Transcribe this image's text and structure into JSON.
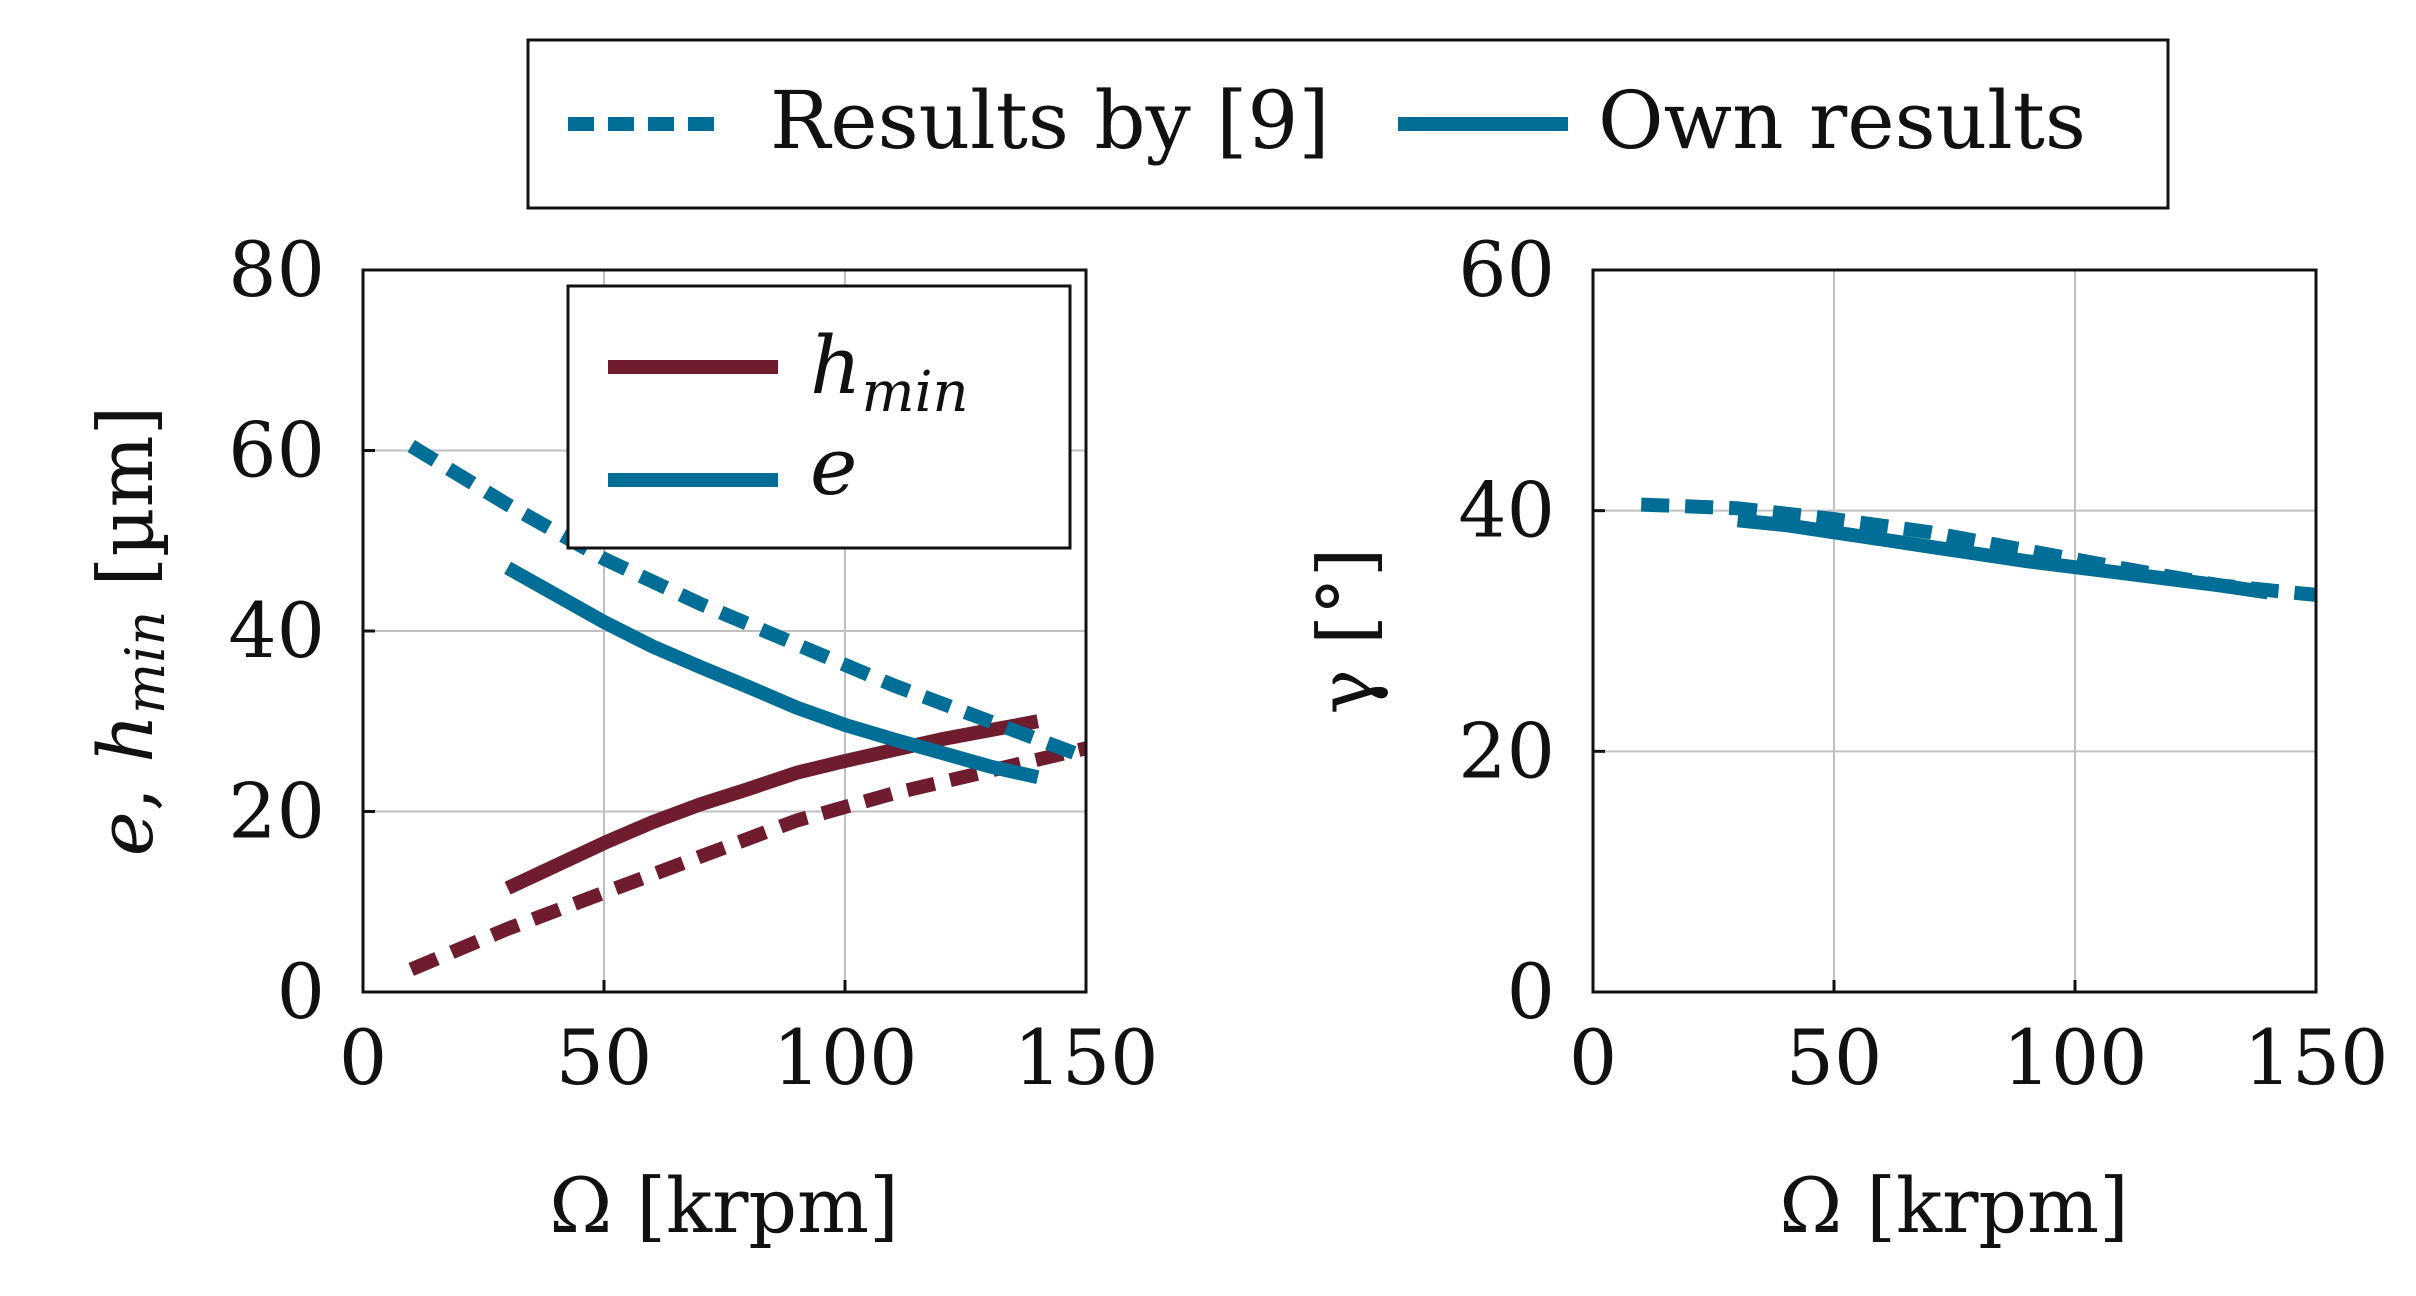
{
  "legend_top": {
    "items": [
      {
        "label": "Results by [9]",
        "style": "dashed"
      },
      {
        "label": "Own results",
        "style": "solid"
      }
    ]
  },
  "colors": {
    "hmin": "#6e1c2e",
    "e": "#006e96",
    "gamma": "#006e96"
  },
  "chart_data": [
    {
      "type": "line",
      "id": "left",
      "xlabel": "Ω [krpm]",
      "ylabel": "e, h_min [µm]",
      "ylabel_parts": {
        "e": "e",
        "sep": ", ",
        "h": "h",
        "sub": "min",
        "unit": " [µm]"
      },
      "xlim": [
        0,
        150
      ],
      "ylim": [
        0,
        80
      ],
      "xticks": [
        0,
        50,
        100,
        150
      ],
      "yticks": [
        0,
        20,
        40,
        60,
        80
      ],
      "legend": {
        "placement": "top-right",
        "entries": [
          {
            "symbol": "h",
            "sub": "min",
            "series": "hmin"
          },
          {
            "symbol": "e",
            "sub": "",
            "series": "e"
          }
        ]
      },
      "series": [
        {
          "name": "h_min (Own results)",
          "quantity": "hmin",
          "style": "solid",
          "x": [
            30,
            40,
            50,
            60,
            70,
            80,
            90,
            100,
            110,
            120,
            130,
            140
          ],
          "y": [
            11.5,
            14,
            16.5,
            18.8,
            20.8,
            22.5,
            24.3,
            25.6,
            26.8,
            28,
            29,
            30
          ]
        },
        {
          "name": "h_min (Results by [9])",
          "quantity": "hmin",
          "style": "dashed",
          "x": [
            10,
            30,
            50,
            70,
            90,
            110,
            130,
            150
          ],
          "y": [
            2.5,
            7,
            11,
            15,
            19,
            22,
            24.5,
            27
          ]
        },
        {
          "name": "e (Own results)",
          "quantity": "e",
          "style": "solid",
          "x": [
            30,
            40,
            50,
            60,
            70,
            80,
            90,
            100,
            110,
            120,
            130,
            140
          ],
          "y": [
            47,
            44,
            41,
            38.3,
            36,
            33.8,
            31.5,
            29.6,
            28,
            26.5,
            25,
            23.8
          ]
        },
        {
          "name": "e (Results by [9])",
          "quantity": "e",
          "style": "dashed",
          "x": [
            10,
            30,
            50,
            70,
            90,
            110,
            130,
            150
          ],
          "y": [
            60.5,
            54,
            48,
            43,
            38.5,
            34,
            30,
            26
          ]
        }
      ]
    },
    {
      "type": "line",
      "id": "right",
      "xlabel": "Ω [krpm]",
      "ylabel": "γ [°]",
      "xlim": [
        0,
        150
      ],
      "ylim": [
        0,
        60
      ],
      "xticks": [
        0,
        50,
        100,
        150
      ],
      "yticks": [
        0,
        20,
        40,
        60
      ],
      "series": [
        {
          "name": "γ (Own results)",
          "quantity": "gamma",
          "style": "solid",
          "x": [
            30,
            40,
            50,
            60,
            70,
            80,
            90,
            100,
            110,
            120,
            130,
            140
          ],
          "y": [
            39.2,
            38.8,
            38.2,
            37.6,
            37,
            36.4,
            35.8,
            35.3,
            34.8,
            34.3,
            33.8,
            33.2
          ]
        },
        {
          "name": "γ (Results by [9])",
          "quantity": "gamma",
          "style": "dashed",
          "x": [
            10,
            30,
            50,
            70,
            90,
            110,
            130,
            150
          ],
          "y": [
            40.5,
            40.2,
            39.3,
            38.2,
            36.7,
            35.2,
            33.8,
            33
          ]
        }
      ]
    }
  ]
}
